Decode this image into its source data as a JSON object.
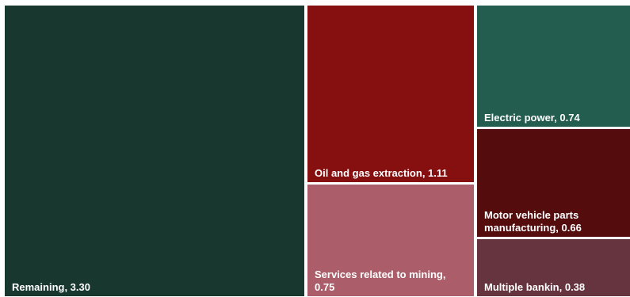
{
  "chart_data": {
    "type": "treemap",
    "title": "",
    "items": [
      {
        "label": "Remaining",
        "value": "3.30",
        "lines": [
          "Remaining,  3.30"
        ],
        "color": "#18382f"
      },
      {
        "label": "Oil and gas extraction",
        "value": "1.11",
        "lines": [
          "Oil and gas extraction,  1.11"
        ],
        "color": "#86100f"
      },
      {
        "label": "Services related to mining",
        "value": "0.75",
        "lines": [
          "Services related to mining,",
          "0.75"
        ],
        "color": "#ab5e6a"
      },
      {
        "label": "Electric power",
        "value": "0.74",
        "lines": [
          "Electric power,  0.74"
        ],
        "color": "#235d4f"
      },
      {
        "label": "Motor vehicle parts manufacturing",
        "value": "0.66",
        "lines": [
          "Motor vehicle parts",
          "manufacturing,  0.66"
        ],
        "color": "#540c0d"
      },
      {
        "label": "Multiple bankin",
        "value": "0.38",
        "lines": [
          "Multiple bankin,  0.38"
        ],
        "color": "#66343f"
      }
    ]
  }
}
